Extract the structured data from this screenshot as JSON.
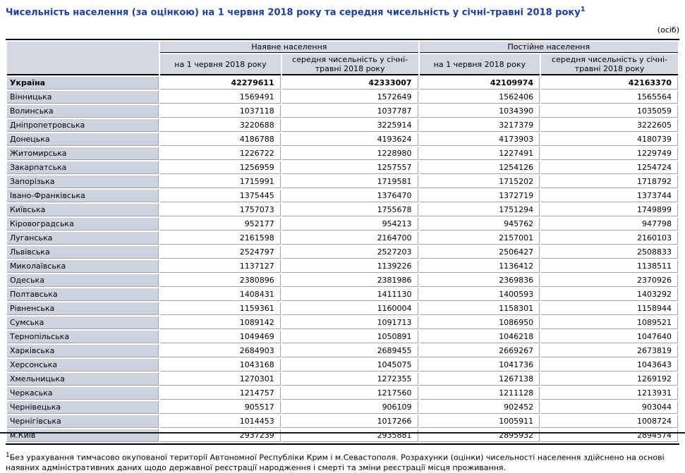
{
  "page": {
    "title": "Чисельність населення (за оцінкою) на 1 червня 2018 року та середня чисельність у січні-травні 2018 року",
    "title_superscript": "1",
    "units_label": "(осіб)"
  },
  "table": {
    "col_groups": [
      {
        "label": "Наявне населення"
      },
      {
        "label": "Постійне населення"
      }
    ],
    "sub_headers": [
      "на 1 червня 2018 року",
      "середня чисельність у січні-травні 2018 року",
      "на 1 червня 2018 року",
      "середня чисельність у січні-травні 2018 року"
    ],
    "rows": [
      {
        "name": "Україна",
        "bold": true,
        "values": [
          "42279611",
          "42333007",
          "42109974",
          "42163370"
        ]
      },
      {
        "name": "Вінницька",
        "bold": false,
        "values": [
          "1569491",
          "1572649",
          "1562406",
          "1565564"
        ]
      },
      {
        "name": "Волинська",
        "bold": false,
        "values": [
          "1037118",
          "1037787",
          "1034390",
          "1035059"
        ]
      },
      {
        "name": "Дніпропетровська",
        "bold": false,
        "values": [
          "3220688",
          "3225914",
          "3217379",
          "3222605"
        ]
      },
      {
        "name": "Донецька",
        "bold": false,
        "values": [
          "4186788",
          "4193624",
          "4173903",
          "4180739"
        ]
      },
      {
        "name": "Житомирська",
        "bold": false,
        "values": [
          "1226722",
          "1228980",
          "1227491",
          "1229749"
        ]
      },
      {
        "name": "Закарпатська",
        "bold": false,
        "values": [
          "1256959",
          "1257557",
          "1254126",
          "1254724"
        ]
      },
      {
        "name": "Запорізька",
        "bold": false,
        "values": [
          "1715991",
          "1719581",
          "1715202",
          "1718792"
        ]
      },
      {
        "name": "Івано-Франківська",
        "bold": false,
        "values": [
          "1375445",
          "1376470",
          "1372719",
          "1373744"
        ]
      },
      {
        "name": "Київська",
        "bold": false,
        "values": [
          "1757073",
          "1755678",
          "1751294",
          "1749899"
        ]
      },
      {
        "name": "Кіровоградська",
        "bold": false,
        "values": [
          "952177",
          "954213",
          "945762",
          "947798"
        ]
      },
      {
        "name": "Луганська",
        "bold": false,
        "values": [
          "2161598",
          "2164700",
          "2157001",
          "2160103"
        ]
      },
      {
        "name": "Львівська",
        "bold": false,
        "values": [
          "2524797",
          "2527203",
          "2506427",
          "2508833"
        ]
      },
      {
        "name": "Миколаївська",
        "bold": false,
        "values": [
          "1137127",
          "1139226",
          "1136412",
          "1138511"
        ]
      },
      {
        "name": "Одеська",
        "bold": false,
        "values": [
          "2380896",
          "2381986",
          "2369836",
          "2370926"
        ]
      },
      {
        "name": "Полтавська",
        "bold": false,
        "values": [
          "1408431",
          "1411130",
          "1400593",
          "1403292"
        ]
      },
      {
        "name": "Рівненська",
        "bold": false,
        "values": [
          "1159361",
          "1160004",
          "1158301",
          "1158944"
        ]
      },
      {
        "name": "Сумська",
        "bold": false,
        "values": [
          "1089142",
          "1091713",
          "1086950",
          "1089521"
        ]
      },
      {
        "name": "Тернопільська",
        "bold": false,
        "values": [
          "1049469",
          "1050891",
          "1046218",
          "1047640"
        ]
      },
      {
        "name": "Харківська",
        "bold": false,
        "values": [
          "2684903",
          "2689455",
          "2669267",
          "2673819"
        ]
      },
      {
        "name": "Херсонська",
        "bold": false,
        "values": [
          "1043168",
          "1045075",
          "1041736",
          "1043643"
        ]
      },
      {
        "name": "Хмельницька",
        "bold": false,
        "values": [
          "1270301",
          "1272355",
          "1267138",
          "1269192"
        ]
      },
      {
        "name": "Черкаська",
        "bold": false,
        "values": [
          "1214757",
          "1217560",
          "1211128",
          "1213931"
        ]
      },
      {
        "name": "Чернівецька",
        "bold": false,
        "values": [
          "905517",
          "906109",
          "902452",
          "903044"
        ]
      },
      {
        "name": "Чернігівська",
        "bold": false,
        "values": [
          "1014453",
          "1017266",
          "1005911",
          "1008724"
        ]
      },
      {
        "name": "м.Київ",
        "bold": false,
        "values": [
          "2937239",
          "2935881",
          "2895932",
          "2894574"
        ]
      }
    ]
  },
  "footnote": {
    "superscript": "1",
    "text": "Без урахування тимчасово окупованої території Автономної Республіки Крим і м.Севастополя. Розрахунки (оцінки) чисельності населення здійснено на основі наявних адміністративних даних щодо державної реєстрації народження і смерті та зміни реєстрації місця проживання."
  },
  "colors": {
    "title_text": "#1e3d9c",
    "header_bg": "#d4d7e1",
    "row_name_bg": "#cdd3de",
    "grid_line": "#a3a3a3",
    "heavy_line": "#000000"
  }
}
